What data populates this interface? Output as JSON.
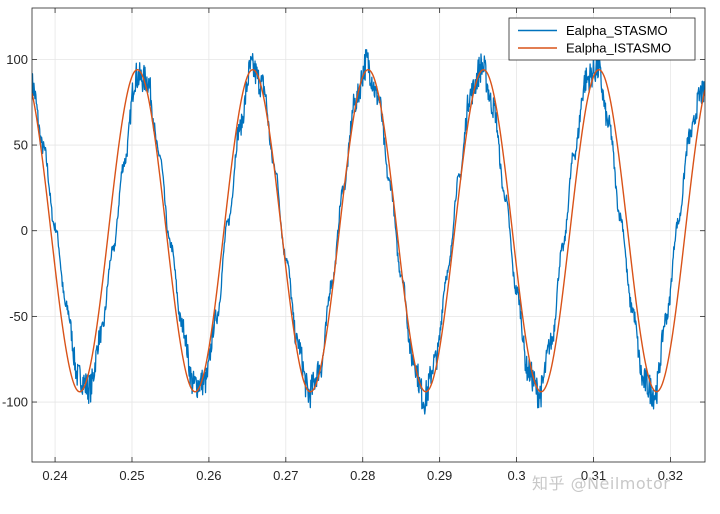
{
  "chart_data": {
    "type": "line",
    "xlim": [
      0.237,
      0.3245
    ],
    "ylim": [
      -135,
      130
    ],
    "grid": true,
    "legend_position": "top-right",
    "xticks": [
      0.24,
      0.25,
      0.26,
      0.27,
      0.28,
      0.29,
      0.3,
      0.31,
      0.32
    ],
    "xtick_labels": [
      "0.24",
      "0.25",
      "0.26",
      "0.27",
      "0.28",
      "0.29",
      "0.3",
      "0.31",
      "0.32"
    ],
    "yticks": [
      -100,
      -50,
      0,
      50,
      100
    ],
    "ytick_labels": [
      "-100",
      "-50",
      "0",
      "50",
      "100"
    ],
    "series": [
      {
        "name": "Ealpha_STASMO",
        "color": "#0072BD",
        "style": "noisy",
        "x": [
          0.237,
          0.2385,
          0.24,
          0.2415,
          0.243,
          0.2445,
          0.246,
          0.2475,
          0.249,
          0.2505,
          0.252,
          0.2535,
          0.255,
          0.2565,
          0.258,
          0.2595,
          0.261,
          0.2625,
          0.264,
          0.2655,
          0.267,
          0.2685,
          0.27,
          0.2715,
          0.273,
          0.2745,
          0.276,
          0.2775,
          0.279,
          0.2805,
          0.282,
          0.2835,
          0.285,
          0.2865,
          0.288,
          0.2895,
          0.291,
          0.2925,
          0.294,
          0.2955,
          0.297,
          0.2985,
          0.3,
          0.3015,
          0.303,
          0.3045,
          0.306,
          0.3075,
          0.309,
          0.3105,
          0.312,
          0.3135,
          0.315,
          0.3165,
          0.318,
          0.3195,
          0.321,
          0.3225,
          0.324
        ],
        "y": [
          85,
          48,
          2,
          -45,
          -85,
          -92,
          -60,
          -12,
          40,
          90,
          88,
          45,
          -8,
          -55,
          -90,
          -88,
          -50,
          5,
          60,
          95,
          85,
          38,
          -15,
          -65,
          -95,
          -80,
          -30,
          25,
          75,
          98,
          78,
          28,
          -25,
          -75,
          -98,
          -75,
          -25,
          30,
          80,
          96,
          72,
          20,
          -35,
          -82,
          -95,
          -65,
          -10,
          45,
          88,
          95,
          62,
          8,
          -45,
          -88,
          -95,
          -50,
          5,
          55,
          80
        ]
      },
      {
        "name": "Ealpha_ISTASMO",
        "color": "#D95319",
        "style": "smooth",
        "amplitude": 94,
        "frequency_hz": 66.6667,
        "phase_peak_x": 0.2507
      }
    ]
  },
  "watermark": "知乎 @Neilmotor"
}
